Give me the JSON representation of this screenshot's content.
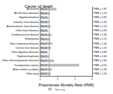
{
  "chart_data": {
    "type": "bar",
    "orientation": "horizontal",
    "title": "Cause of death",
    "x_label": "Proportionate Mortality Ratio (PMR)",
    "categories": [
      "Alcoholism",
      "All infectious diseases",
      "Hypothermia/heat",
      "Ischemic heart disease",
      "Arteriosclerotic heart disease",
      "Other heart diseases",
      "Cerebrovascular disease",
      "Emphysema",
      "Other respiratory diseases",
      "Chronic liver disease",
      "Other digestive diseases",
      "Nephritis/nephrosis",
      "Other infective/parasitic diseases",
      "Transportation injuries",
      "Motor vehicle accidents",
      "Other injury"
    ],
    "series": [
      {
        "name": "Non-sig",
        "color": "#bbbbbb",
        "values": [
          1.87,
          1.1,
          0.95,
          1.05,
          1.2,
          0.9,
          1.3,
          1.15,
          1.4,
          1.25,
          0.85,
          1.0,
          1.6,
          4.5,
          1.35,
          1.2
        ],
        "value_labels": [
          "PMR = 1.87",
          "PMR = 1.10",
          "PMR = 0.95",
          "PMR = 1.05",
          "PMR = 1.20",
          "PMR = 0.90",
          "PMR = 1.30",
          "PMR = 1.15",
          "PMR = 1.40",
          "PMR = 1.25",
          "PMR = 0.85",
          "PMR = 1.00",
          "PMR = 1.60",
          "PMR = 4.50",
          "PMR = 1.35",
          "PMR = 1.20"
        ],
        "n": [
          1,
          2,
          1,
          3,
          2,
          1,
          2,
          1,
          2,
          1,
          1,
          1,
          2,
          3,
          1,
          1
        ],
        "n_labels": [
          "N = 1",
          "N = 2",
          "N = 1",
          "N = 3",
          "N = 2",
          "N = 1",
          "N = 2",
          "N = 1",
          "N = 2",
          "N = 1",
          "N = 1",
          "N = 1",
          "N = 2",
          "N = 3",
          "N = 1",
          "N = 1"
        ]
      }
    ],
    "reference_line": 1,
    "xlim": [
      0,
      6
    ],
    "xticks": [
      0,
      2,
      4,
      6
    ],
    "legend": "bottom",
    "grid": false
  }
}
